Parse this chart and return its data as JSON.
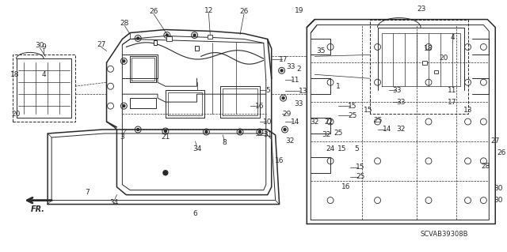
{
  "bg": "#f5f5f0",
  "lc": "#2a2a2a",
  "fig_w": 6.4,
  "fig_h": 3.19,
  "dpi": 100,
  "diagram_code": "SCVAB39308B",
  "img_extent": [
    0,
    640,
    0,
    319
  ]
}
